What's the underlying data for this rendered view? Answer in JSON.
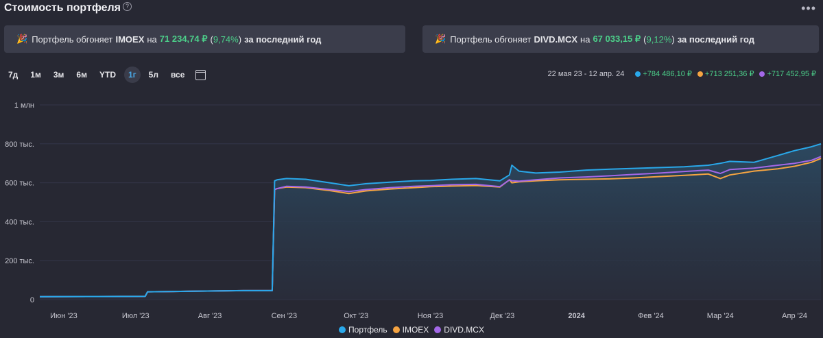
{
  "header": {
    "title": "Стоимость портфеля",
    "help": "?",
    "more": "•••"
  },
  "banners": [
    {
      "prefix": "Портфель обгоняет",
      "symbol": "IMOEX",
      "on": "на",
      "amount": "71 234,74 ₽",
      "pct_open": "(",
      "pct_value": "9,74%",
      "pct_close": ")",
      "suffix": "за последний год"
    },
    {
      "prefix": "Портфель обгоняет",
      "symbol": "DIVD.MCX",
      "on": "на",
      "amount": "67 033,15 ₽",
      "pct_open": "(",
      "pct_value": "9,12%",
      "pct_close": ")",
      "suffix": "за последний год"
    }
  ],
  "periods": [
    "7д",
    "1м",
    "3м",
    "6м",
    "YTD",
    "1г",
    "5л",
    "все"
  ],
  "active_period": "1г",
  "summary": {
    "range": "22 мая 23 - 12 апр. 24",
    "items": [
      {
        "value": "+784 486,10 ₽",
        "color": "#29a8ea"
      },
      {
        "value": "+713 251,36 ₽",
        "color": "#f5a442"
      },
      {
        "value": "+717 452,95 ₽",
        "color": "#a368e8"
      }
    ]
  },
  "chart_data": {
    "type": "area",
    "x_ticks": [
      "Июн '23",
      "Июл '23",
      "Авг '23",
      "Сен '23",
      "Окт '23",
      "Ноя '23",
      "Дек '23",
      "2024",
      "Фев '24",
      "Мар '24",
      "Апр '24"
    ],
    "y_ticks": [
      "0",
      "200 тыс.",
      "400 тыс.",
      "600 тыс.",
      "800 тыс.",
      "1 млн"
    ],
    "ylim": [
      0,
      1000000
    ],
    "x": [
      "2023-05-22",
      "2023-06-15",
      "2023-07-05",
      "2023-07-06",
      "2023-07-25",
      "2023-08-15",
      "2023-08-27",
      "2023-08-28",
      "2023-08-29",
      "2023-09-02",
      "2023-09-10",
      "2023-09-20",
      "2023-09-28",
      "2023-10-05",
      "2023-10-15",
      "2023-10-25",
      "2023-11-01",
      "2023-11-10",
      "2023-11-20",
      "2023-11-30",
      "2023-12-04",
      "2023-12-05",
      "2023-12-08",
      "2023-12-15",
      "2023-12-25",
      "2024-01-05",
      "2024-01-15",
      "2024-01-25",
      "2024-02-05",
      "2024-02-15",
      "2024-02-25",
      "2024-03-01",
      "2024-03-05",
      "2024-03-15",
      "2024-03-25",
      "2024-04-01",
      "2024-04-08",
      "2024-04-12"
    ],
    "series": [
      {
        "name": "Портфель",
        "color": "#29a8ea",
        "values": [
          15000,
          16000,
          17000,
          40000,
          43000,
          46000,
          46000,
          610000,
          615000,
          622000,
          618000,
          600000,
          585000,
          595000,
          603000,
          610000,
          612000,
          618000,
          622000,
          610000,
          640000,
          690000,
          660000,
          650000,
          655000,
          665000,
          670000,
          674000,
          678000,
          682000,
          690000,
          700000,
          710000,
          705000,
          740000,
          765000,
          785000,
          800000
        ]
      },
      {
        "name": "IMOEX",
        "color": "#f5a442",
        "values": [
          15000,
          16000,
          17000,
          40000,
          43000,
          46000,
          46000,
          565000,
          570000,
          578000,
          575000,
          560000,
          545000,
          558000,
          568000,
          575000,
          580000,
          583000,
          586000,
          578000,
          615000,
          600000,
          605000,
          610000,
          615000,
          618000,
          620000,
          625000,
          632000,
          638000,
          645000,
          622000,
          640000,
          660000,
          672000,
          685000,
          705000,
          725000
        ]
      },
      {
        "name": "DIVD.MCX",
        "color": "#a368e8",
        "values": [
          15000,
          16000,
          17000,
          40000,
          43000,
          46000,
          46000,
          565000,
          570000,
          582000,
          578000,
          565000,
          555000,
          565000,
          575000,
          582000,
          585000,
          590000,
          592000,
          580000,
          615000,
          610000,
          608000,
          615000,
          625000,
          630000,
          636000,
          643000,
          650000,
          658000,
          665000,
          648000,
          668000,
          675000,
          690000,
          700000,
          715000,
          735000
        ]
      }
    ]
  }
}
